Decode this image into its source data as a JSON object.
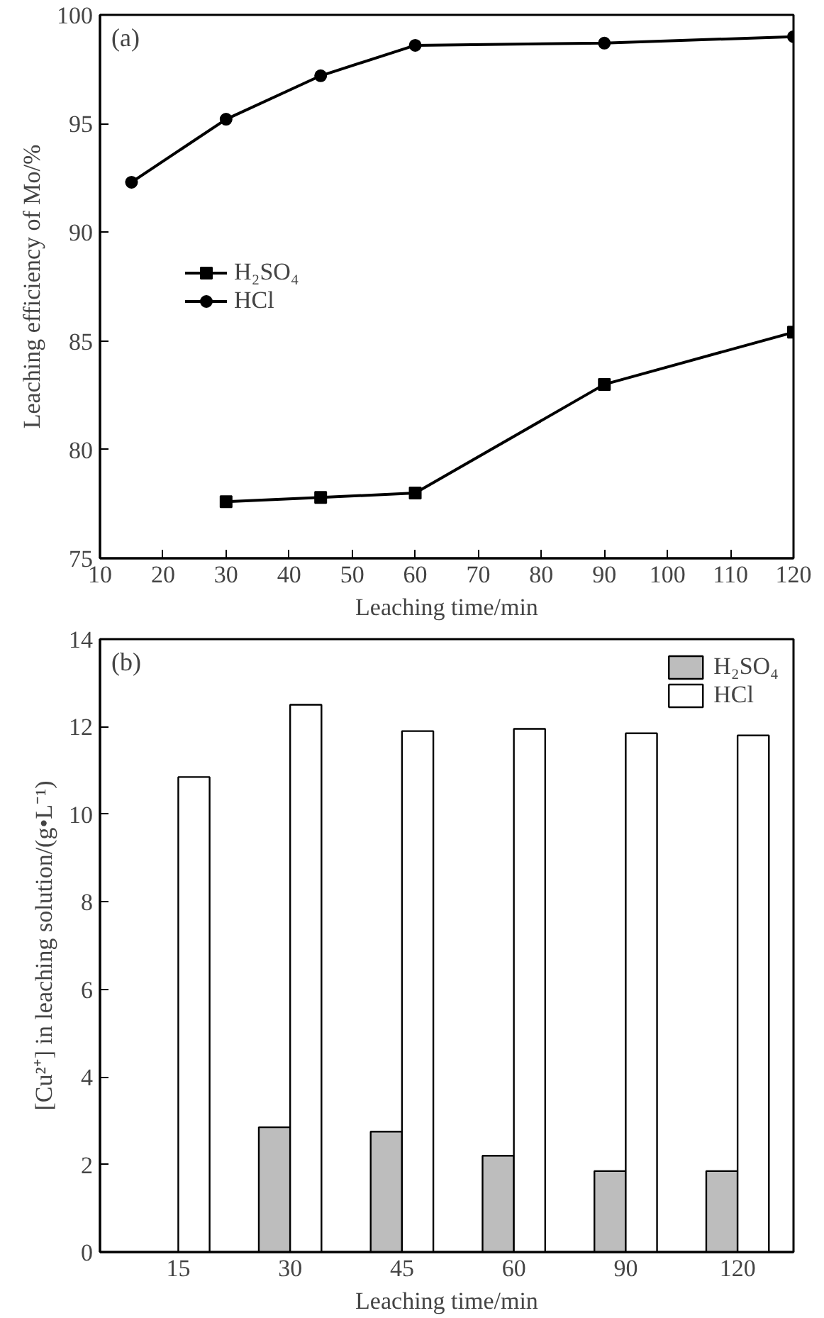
{
  "chart_data": [
    {
      "type": "line",
      "xlabel": "Leaching time/min",
      "ylabel": "Leaching efficiency of Mo/%",
      "annotations": [
        "(a)"
      ],
      "x": [
        15,
        30,
        45,
        60,
        90,
        120
      ],
      "series": [
        {
          "name": "H₂SO₄",
          "color": "#000000",
          "marker": "square",
          "values": [
            null,
            77.6,
            77.8,
            78.0,
            83.0,
            85.4
          ]
        },
        {
          "name": "HCl",
          "color": "#000000",
          "marker": "circle",
          "values": [
            92.3,
            95.2,
            97.2,
            98.6,
            98.7,
            99.0
          ]
        }
      ],
      "xlim": [
        10,
        120
      ],
      "xticks": [
        10,
        20,
        30,
        40,
        50,
        60,
        70,
        80,
        90,
        100,
        110,
        120
      ],
      "ylim": [
        75,
        100
      ],
      "yticks": [
        75,
        80,
        85,
        90,
        95,
        100
      ],
      "legend": "left",
      "grid": false,
      "line_style": "solid"
    },
    {
      "type": "bar",
      "xlabel": "Leaching time/min",
      "ylabel": "[Cu²⁺] in leaching solution/(g•L⁻¹)",
      "annotations": [
        "(b)"
      ],
      "categories": [
        "15",
        "30",
        "45",
        "60",
        "90",
        "120"
      ],
      "series": [
        {
          "name": "H₂SO₄",
          "color": "#bdbdbd",
          "values": [
            null,
            2.85,
            2.75,
            2.2,
            1.85,
            1.85
          ]
        },
        {
          "name": "HCl",
          "color": "#ffffff",
          "values": [
            10.85,
            12.5,
            11.9,
            11.95,
            11.85,
            11.8
          ]
        }
      ],
      "ylim": [
        0,
        14
      ],
      "yticks": [
        0,
        2,
        4,
        6,
        8,
        10,
        12,
        14
      ],
      "legend": "top right",
      "grid": false
    }
  ]
}
